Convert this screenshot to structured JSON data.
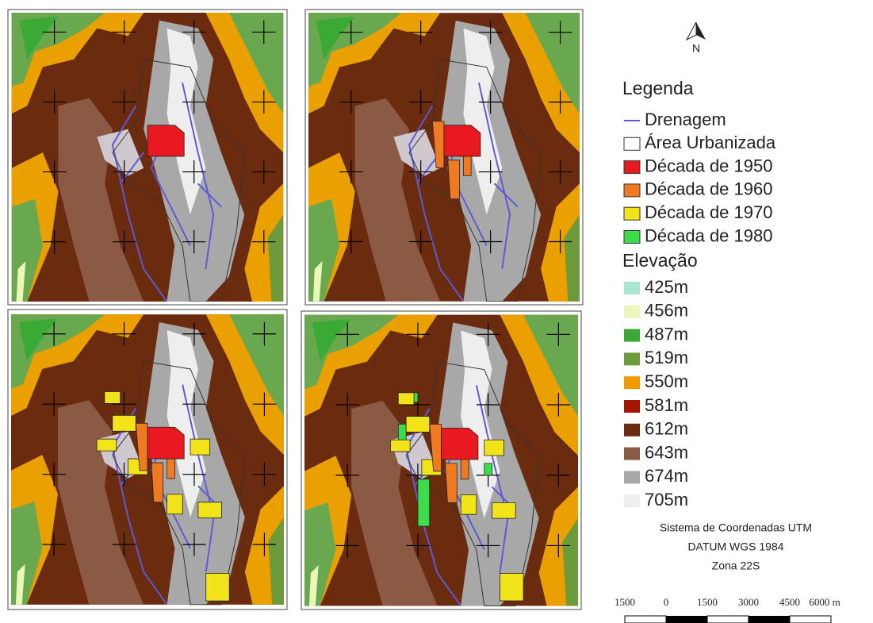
{
  "north": "N",
  "legend": {
    "title": "Legenda",
    "items": [
      {
        "label": "Drenagem",
        "color": "#5b5bd6"
      },
      {
        "label": "Área Urbanizada",
        "color": "#ffffff"
      },
      {
        "label": "Década de 1950",
        "color": "#e8191f"
      },
      {
        "label": "Década de 1960",
        "color": "#ef7a22"
      },
      {
        "label": "Década de 1970",
        "color": "#f3e41a"
      },
      {
        "label": "Década de 1980",
        "color": "#3ddc4a"
      }
    ],
    "elevation_title": "Elevação",
    "elevation": [
      {
        "label": "425m",
        "color": "#a8e6cf"
      },
      {
        "label": "456m",
        "color": "#e9f7b8"
      },
      {
        "label": "487m",
        "color": "#3aaa35"
      },
      {
        "label": "519m",
        "color": "#6d9a3a"
      },
      {
        "label": "550m",
        "color": "#f09a00"
      },
      {
        "label": "581m",
        "color": "#a31500"
      },
      {
        "label": "612m",
        "color": "#6b2b0e"
      },
      {
        "label": "643m",
        "color": "#8b5a45"
      },
      {
        "label": "674m",
        "color": "#a8a8a8"
      },
      {
        "label": "705m",
        "color": "#eeeeee"
      }
    ]
  },
  "crs": [
    "Sistema de Coordenadas UTM",
    "DATUM WGS 1984",
    "Zona 22S"
  ],
  "scale": [
    "1500",
    "0",
    "1500",
    "3000",
    "4500",
    "6000 m"
  ]
}
